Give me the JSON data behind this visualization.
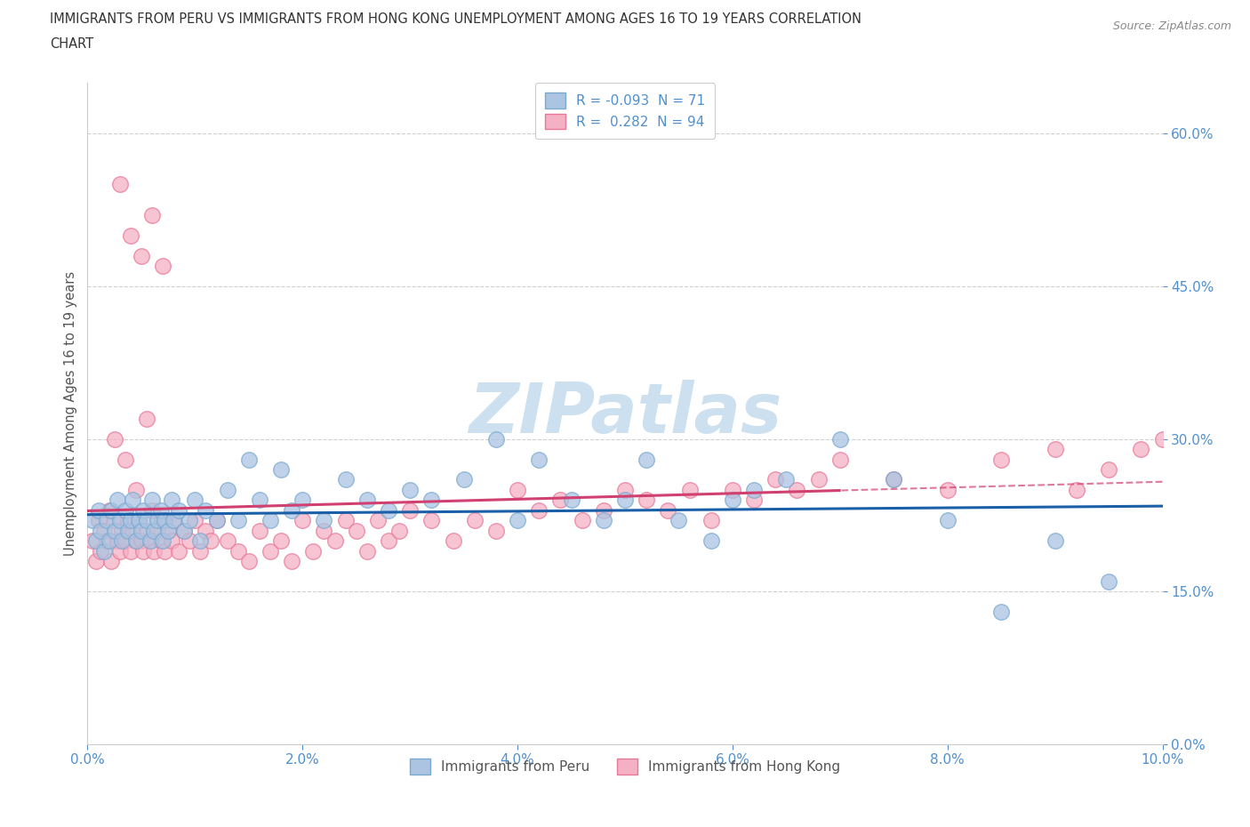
{
  "title_line1": "IMMIGRANTS FROM PERU VS IMMIGRANTS FROM HONG KONG UNEMPLOYMENT AMONG AGES 16 TO 19 YEARS CORRELATION",
  "title_line2": "CHART",
  "source": "Source: ZipAtlas.com",
  "ylabel": "Unemployment Among Ages 16 to 19 years",
  "xlim": [
    0.0,
    10.0
  ],
  "ylim": [
    0.0,
    65.0
  ],
  "xticks": [
    0.0,
    2.0,
    4.0,
    6.0,
    8.0,
    10.0
  ],
  "xticklabels": [
    "0.0%",
    "2.0%",
    "4.0%",
    "6.0%",
    "8.0%",
    "10.0%"
  ],
  "yticks": [
    0.0,
    15.0,
    30.0,
    45.0,
    60.0
  ],
  "yticklabels": [
    "0.0%",
    "15.0%",
    "30.0%",
    "45.0%",
    "60.0%"
  ],
  "peru_R": -0.093,
  "peru_N": 71,
  "hk_R": 0.282,
  "hk_N": 94,
  "peru_color": "#aac4e2",
  "peru_edge_color": "#7aaad0",
  "hk_color": "#f4b0c4",
  "hk_edge_color": "#e87898",
  "peru_line_color": "#1a5fa8",
  "hk_line_color": "#d04070",
  "watermark": "ZIPatlas",
  "watermark_color": "#cce0f0",
  "background_color": "#ffffff",
  "grid_color": "#d0d0d0",
  "tick_color": "#5090d0",
  "legend_label_peru": "R = -0.093  N = 71",
  "legend_label_hk": "R =  0.282  N = 94",
  "legend_bottom_peru": "Immigrants from Peru",
  "legend_bottom_hk": "Immigrants from Hong Kong",
  "peru_x": [
    0.05,
    0.08,
    0.1,
    0.12,
    0.15,
    0.18,
    0.2,
    0.22,
    0.25,
    0.28,
    0.3,
    0.32,
    0.35,
    0.38,
    0.4,
    0.42,
    0.45,
    0.48,
    0.5,
    0.52,
    0.55,
    0.58,
    0.6,
    0.62,
    0.65,
    0.68,
    0.7,
    0.72,
    0.75,
    0.78,
    0.8,
    0.85,
    0.9,
    0.95,
    1.0,
    1.05,
    1.1,
    1.2,
    1.3,
    1.4,
    1.5,
    1.6,
    1.7,
    1.8,
    1.9,
    2.0,
    2.2,
    2.4,
    2.6,
    2.8,
    3.0,
    3.2,
    3.5,
    3.8,
    4.0,
    4.2,
    4.5,
    4.8,
    5.0,
    5.2,
    5.5,
    5.8,
    6.0,
    6.2,
    6.5,
    7.0,
    7.5,
    8.0,
    8.5,
    9.0,
    9.5
  ],
  "peru_y": [
    22,
    20,
    23,
    21,
    19,
    22,
    20,
    23,
    21,
    24,
    22,
    20,
    23,
    21,
    22,
    24,
    20,
    22,
    21,
    23,
    22,
    20,
    24,
    21,
    22,
    23,
    20,
    22,
    21,
    24,
    22,
    23,
    21,
    22,
    24,
    20,
    23,
    22,
    25,
    22,
    28,
    24,
    22,
    27,
    23,
    24,
    22,
    26,
    24,
    23,
    25,
    24,
    26,
    30,
    22,
    28,
    24,
    22,
    24,
    28,
    22,
    20,
    24,
    25,
    26,
    30,
    26,
    22,
    13,
    20,
    16
  ],
  "hk_x": [
    0.05,
    0.08,
    0.1,
    0.12,
    0.15,
    0.18,
    0.2,
    0.22,
    0.25,
    0.28,
    0.3,
    0.32,
    0.35,
    0.38,
    0.4,
    0.42,
    0.45,
    0.48,
    0.5,
    0.52,
    0.55,
    0.58,
    0.6,
    0.62,
    0.65,
    0.68,
    0.7,
    0.72,
    0.75,
    0.78,
    0.8,
    0.85,
    0.9,
    0.95,
    1.0,
    1.05,
    1.1,
    1.15,
    1.2,
    1.3,
    1.4,
    1.5,
    1.6,
    1.7,
    1.8,
    1.9,
    2.0,
    2.1,
    2.2,
    2.3,
    2.4,
    2.5,
    2.6,
    2.7,
    2.8,
    2.9,
    3.0,
    3.2,
    3.4,
    3.6,
    3.8,
    4.0,
    4.2,
    4.4,
    4.6,
    4.8,
    5.0,
    5.2,
    5.4,
    5.6,
    5.8,
    6.0,
    6.2,
    6.4,
    6.6,
    6.8,
    7.0,
    7.5,
    8.0,
    8.5,
    9.0,
    9.2,
    9.5,
    9.8,
    10.0,
    0.3,
    0.6,
    0.4,
    0.5,
    0.7,
    0.25,
    0.35,
    0.55,
    0.45
  ],
  "hk_y": [
    20,
    18,
    22,
    19,
    21,
    20,
    23,
    18,
    22,
    20,
    19,
    21,
    20,
    22,
    19,
    21,
    20,
    22,
    20,
    19,
    21,
    20,
    23,
    19,
    21,
    20,
    22,
    19,
    21,
    20,
    22,
    19,
    21,
    20,
    22,
    19,
    21,
    20,
    22,
    20,
    19,
    18,
    21,
    19,
    20,
    18,
    22,
    19,
    21,
    20,
    22,
    21,
    19,
    22,
    20,
    21,
    23,
    22,
    20,
    22,
    21,
    25,
    23,
    24,
    22,
    23,
    25,
    24,
    23,
    25,
    22,
    25,
    24,
    26,
    25,
    26,
    28,
    26,
    25,
    28,
    29,
    25,
    27,
    29,
    30,
    55,
    52,
    50,
    48,
    47,
    30,
    28,
    32,
    25
  ]
}
